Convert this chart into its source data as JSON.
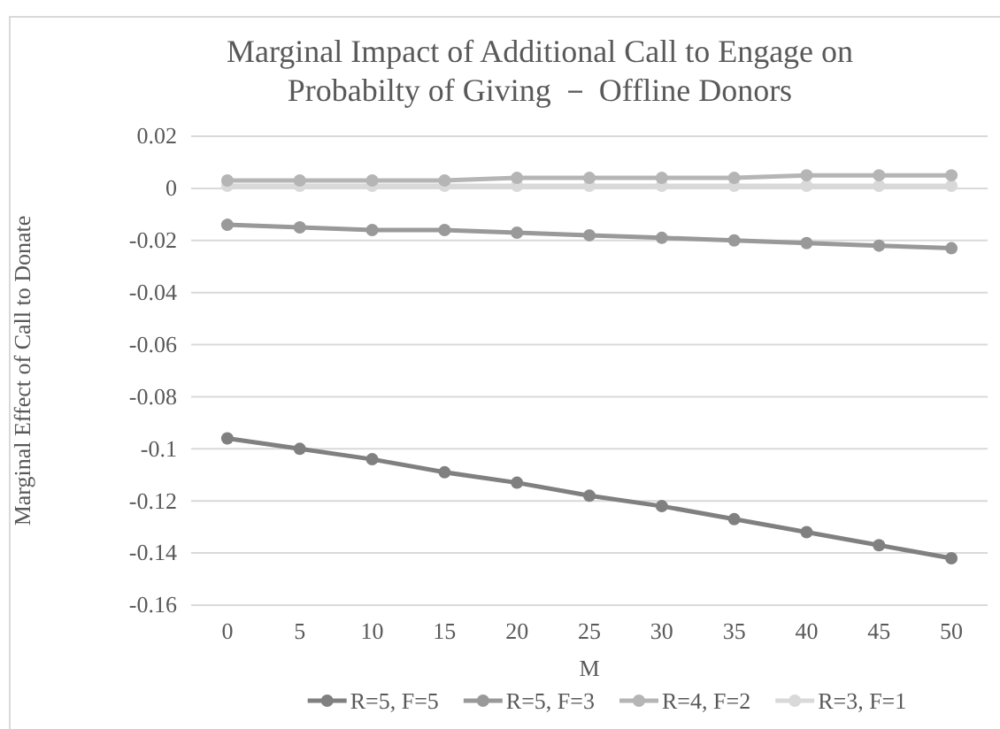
{
  "chart_data": {
    "type": "line",
    "title": "Marginal Impact of Additional Call to Engage on Probabilty of Giving － Offline Donors",
    "xlabel": "M",
    "ylabel": "Marginal Effect of Call to Donate",
    "categories": [
      "0",
      "5",
      "10",
      "15",
      "20",
      "25",
      "30",
      "35",
      "40",
      "45",
      "50"
    ],
    "series": [
      {
        "name": "R=5, F=5",
        "color": "#808080",
        "values": [
          -0.096,
          -0.1,
          -0.104,
          -0.109,
          -0.113,
          -0.118,
          -0.122,
          -0.127,
          -0.132,
          -0.137,
          -0.142
        ]
      },
      {
        "name": "R=5, F=3",
        "color": "#999999",
        "values": [
          -0.014,
          -0.015,
          -0.016,
          -0.016,
          -0.017,
          -0.018,
          -0.019,
          -0.02,
          -0.021,
          -0.022,
          -0.023
        ]
      },
      {
        "name": "R=4, F=2",
        "color": "#b5b5b5",
        "values": [
          0.003,
          0.003,
          0.003,
          0.003,
          0.004,
          0.004,
          0.004,
          0.004,
          0.005,
          0.005,
          0.005
        ]
      },
      {
        "name": "R=3, F=1",
        "color": "#d9d9d9",
        "values": [
          0.001,
          0.001,
          0.001,
          0.001,
          0.001,
          0.001,
          0.001,
          0.001,
          0.001,
          0.001,
          0.001
        ]
      }
    ],
    "ylim": [
      -0.16,
      0.02
    ],
    "yticks": [
      -0.16,
      -0.14,
      -0.12,
      -0.1,
      -0.08,
      -0.06,
      -0.04,
      -0.02,
      0,
      0.02
    ],
    "grid": "y",
    "legend": "bottom",
    "marker": "circle",
    "line_style": "solid"
  }
}
